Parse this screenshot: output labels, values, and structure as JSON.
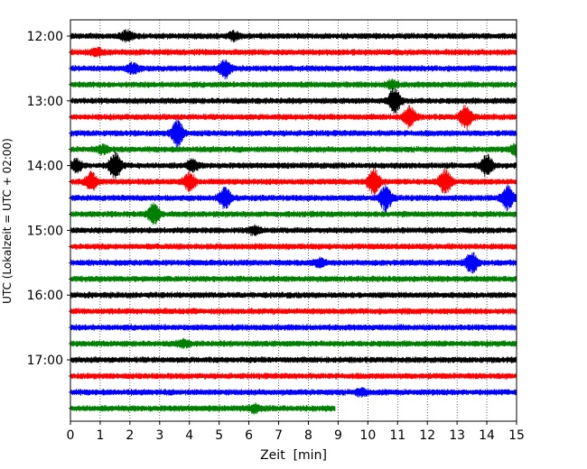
{
  "chart_data": {
    "type": "line",
    "subtype": "helicorder",
    "xlabel": "Zeit  [min]",
    "ylabel": "UTC (Lokalzeit = UTC + 02:00)",
    "xlim": [
      0,
      15
    ],
    "x_ticks": [
      "0",
      "1",
      "2",
      "3",
      "4",
      "5",
      "6",
      "7",
      "8",
      "9",
      "10",
      "11",
      "12",
      "13",
      "14",
      "15"
    ],
    "y_tick_labels": [
      "12:00",
      "13:00",
      "14:00",
      "15:00",
      "16:00",
      "17:00"
    ],
    "trace_minutes_per_line": 15,
    "trace_colors": [
      "#000000",
      "#ff0000",
      "#0000ff",
      "#008000"
    ],
    "grid": "vertical dotted lines at each minute",
    "traces": [
      {
        "start": "12:00",
        "color": "#000000",
        "end_min": 15,
        "events": [
          {
            "t": 1.9,
            "amp": 1.6
          },
          {
            "t": 5.5,
            "amp": 1.4
          }
        ]
      },
      {
        "start": "12:15",
        "color": "#ff0000",
        "end_min": 15,
        "events": [
          {
            "t": 0.9,
            "amp": 1.2
          }
        ]
      },
      {
        "start": "12:30",
        "color": "#0000ff",
        "end_min": 15,
        "events": [
          {
            "t": 2.1,
            "amp": 1.6
          },
          {
            "t": 5.2,
            "amp": 3.0
          }
        ]
      },
      {
        "start": "12:45",
        "color": "#008000",
        "end_min": 15,
        "events": [
          {
            "t": 10.8,
            "amp": 1.2
          }
        ]
      },
      {
        "start": "13:00",
        "color": "#000000",
        "end_min": 15,
        "events": [
          {
            "t": 10.9,
            "amp": 4.5
          }
        ]
      },
      {
        "start": "13:15",
        "color": "#ff0000",
        "end_min": 15,
        "events": [
          {
            "t": 11.4,
            "amp": 3.5
          },
          {
            "t": 13.3,
            "amp": 4.0
          }
        ]
      },
      {
        "start": "13:30",
        "color": "#0000ff",
        "end_min": 15,
        "events": [
          {
            "t": 3.6,
            "amp": 4.5
          }
        ]
      },
      {
        "start": "13:45",
        "color": "#008000",
        "end_min": 15,
        "events": [
          {
            "t": 1.1,
            "amp": 1.2
          },
          {
            "t": 15.0,
            "amp": 1.8
          }
        ]
      },
      {
        "start": "14:00",
        "color": "#000000",
        "end_min": 15,
        "events": [
          {
            "t": 0.2,
            "amp": 2.0
          },
          {
            "t": 1.5,
            "amp": 4.5
          },
          {
            "t": 4.1,
            "amp": 1.8
          },
          {
            "t": 14.0,
            "amp": 3.5
          }
        ]
      },
      {
        "start": "14:15",
        "color": "#ff0000",
        "end_min": 15,
        "events": [
          {
            "t": 0.7,
            "amp": 3.0
          },
          {
            "t": 4.0,
            "amp": 3.0
          },
          {
            "t": 10.2,
            "amp": 4.5
          },
          {
            "t": 12.6,
            "amp": 4.0
          }
        ]
      },
      {
        "start": "14:30",
        "color": "#0000ff",
        "end_min": 15,
        "events": [
          {
            "t": 5.2,
            "amp": 3.5
          },
          {
            "t": 10.6,
            "amp": 4.5
          },
          {
            "t": 14.7,
            "amp": 4.0
          }
        ]
      },
      {
        "start": "14:45",
        "color": "#008000",
        "end_min": 15,
        "events": [
          {
            "t": 2.8,
            "amp": 3.5
          }
        ]
      },
      {
        "start": "15:00",
        "color": "#000000",
        "end_min": 15,
        "events": [
          {
            "t": 6.2,
            "amp": 1.2
          }
        ]
      },
      {
        "start": "15:15",
        "color": "#ff0000",
        "end_min": 15,
        "events": []
      },
      {
        "start": "15:30",
        "color": "#0000ff",
        "end_min": 15,
        "events": [
          {
            "t": 8.4,
            "amp": 1.2
          },
          {
            "t": 13.5,
            "amp": 3.5
          }
        ]
      },
      {
        "start": "15:45",
        "color": "#008000",
        "end_min": 15,
        "events": []
      },
      {
        "start": "16:00",
        "color": "#000000",
        "end_min": 15,
        "events": []
      },
      {
        "start": "16:15",
        "color": "#ff0000",
        "end_min": 15,
        "events": []
      },
      {
        "start": "16:30",
        "color": "#0000ff",
        "end_min": 15,
        "events": []
      },
      {
        "start": "16:45",
        "color": "#008000",
        "end_min": 15,
        "events": [
          {
            "t": 3.8,
            "amp": 1.0
          }
        ]
      },
      {
        "start": "17:00",
        "color": "#000000",
        "end_min": 15,
        "events": []
      },
      {
        "start": "17:15",
        "color": "#ff0000",
        "end_min": 15,
        "events": []
      },
      {
        "start": "17:30",
        "color": "#0000ff",
        "end_min": 15,
        "events": [
          {
            "t": 9.8,
            "amp": 1.0
          }
        ]
      },
      {
        "start": "17:45",
        "color": "#008000",
        "end_min": 8.9,
        "events": [
          {
            "t": 6.2,
            "amp": 1.0
          }
        ]
      }
    ]
  }
}
